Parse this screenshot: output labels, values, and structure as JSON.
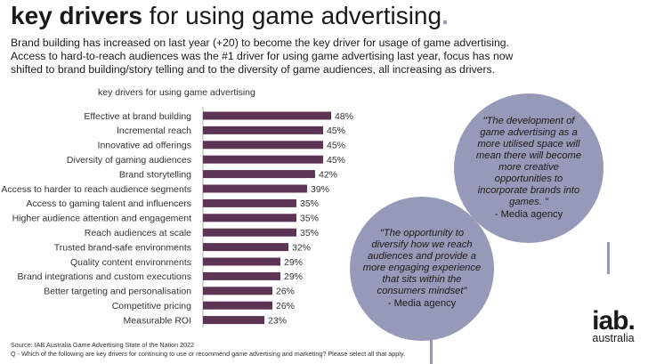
{
  "title": {
    "bold": "key drivers",
    "rest": " for using game advertising",
    "dot": "."
  },
  "intro": [
    "Brand building has increased on last year (+20) to become the key driver for usage of game advertising.",
    "Access to hard-to-reach audiences was the #1 driver for using game advertising last year, focus has now",
    "shifted to brand building/story telling and to the diversity of game audiences, all increasing as drivers."
  ],
  "chart_data": {
    "type": "bar",
    "orientation": "horizontal",
    "title": "key drivers for using game advertising",
    "categories": [
      "Effective at brand building",
      "Incremental reach",
      "Innovative ad offerings",
      "Diversity of gaming audiences",
      "Brand storytelling",
      "Access to harder to reach audience segments",
      "Access to gaming talent and influencers",
      "Higher audience attention and engagement",
      "Reach audiences at scale",
      "Trusted brand-safe environments",
      "Quality content environments",
      "Brand integrations and custom executions",
      "Better targeting and personalisation",
      "Competitive pricing",
      "Measurable ROI"
    ],
    "values": [
      48,
      45,
      45,
      45,
      42,
      39,
      35,
      35,
      35,
      32,
      29,
      29,
      26,
      26,
      23
    ],
    "value_suffix": "%",
    "xlim": [
      0,
      48
    ],
    "grid": false,
    "bar_color": "#5c3454"
  },
  "quotes": [
    {
      "text": "\"The development of game advertising as a more utilised space will mean there will become more creative opportunities to incorporate brands into games. \"",
      "attribution": "- Media agency"
    },
    {
      "text": "\"The opportunity to diversify how we reach audiences and provide a more engaging experience that sits within the consumers mindset\"",
      "attribution": "- Media agency"
    }
  ],
  "logo": {
    "main": "iab.",
    "sub": "australia"
  },
  "footnote": [
    "Source: IAB Australia Game Advertising State of the Nation 2022",
    "Q - Which of the following are key drivers for continuing to use or recommend game advertising and marketing? Please select all that apply."
  ],
  "colors": {
    "accent": "#9799b8",
    "bar": "#5c3454"
  }
}
